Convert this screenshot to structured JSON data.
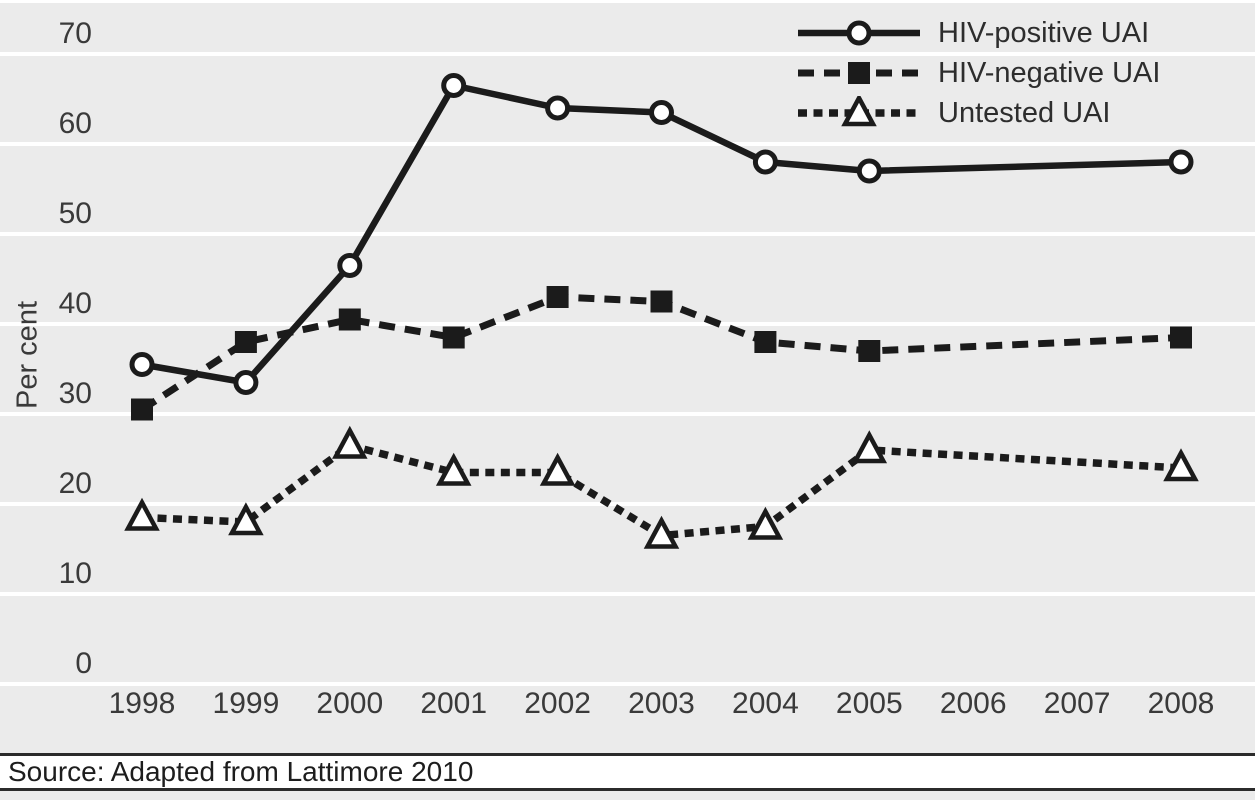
{
  "colors": {
    "background": "#ebebeb",
    "gridline": "#ffffff",
    "series_color": "#1b1b1b",
    "tick_text": "#3a3a3a",
    "footer_text": "#1d1d1d"
  },
  "chart_data": {
    "type": "line",
    "title": "",
    "ylabel": "Per cent",
    "xlabel": "",
    "ylim": [
      0,
      70
    ],
    "yticks": [
      70,
      60,
      50,
      40,
      30,
      20,
      10,
      0
    ],
    "x_tick_labels": [
      "1998",
      "1999",
      "2000",
      "2001",
      "2002",
      "2003",
      "2004",
      "2005",
      "2006",
      "2007",
      "2008"
    ],
    "grid": "horizontal",
    "legend_position": "top-right",
    "series": [
      {
        "name": "HIV-positive UAI",
        "line": "solid",
        "marker": "open-circle",
        "x": [
          1998,
          1999,
          2000,
          2001,
          2002,
          2003,
          2004,
          2005,
          2008
        ],
        "values": [
          35.5,
          33.5,
          46.5,
          66.5,
          64,
          63.5,
          58,
          57,
          58
        ]
      },
      {
        "name": "HIV-negative UAI",
        "line": "dashed",
        "marker": "filled-square",
        "x": [
          1998,
          1999,
          2000,
          2001,
          2002,
          2003,
          2004,
          2005,
          2008
        ],
        "values": [
          30.5,
          38,
          40.5,
          38.5,
          43,
          42.5,
          38,
          37,
          38.5
        ]
      },
      {
        "name": "Untested UAI",
        "line": "dotted",
        "marker": "open-triangle",
        "x": [
          1998,
          1999,
          2000,
          2001,
          2002,
          2003,
          2004,
          2005,
          2008
        ],
        "values": [
          18.5,
          18,
          26.5,
          23.5,
          23.5,
          16.5,
          17.5,
          26,
          24
        ]
      }
    ],
    "source": "Source: Adapted from Lattimore 2010"
  }
}
